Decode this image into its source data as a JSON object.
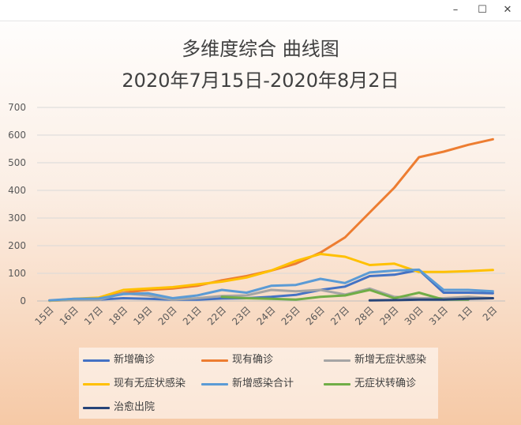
{
  "window": {
    "minimize": "–",
    "maximize": "☐",
    "close": "✕"
  },
  "chart_data": {
    "type": "line",
    "title": "多维度综合 曲线图",
    "subtitle": "2020年7月15日-2020年8月2日",
    "xlabel": "",
    "ylabel": "",
    "ylim": [
      0,
      700
    ],
    "yticks": [
      "0",
      "100",
      "200",
      "300",
      "400",
      "500",
      "600",
      "700"
    ],
    "grid": true,
    "legend_position": "bottom",
    "categories": [
      "15日",
      "16日",
      "17日",
      "18日",
      "19日",
      "20日",
      "21日",
      "22日",
      "23日",
      "24日",
      "25日",
      "26日",
      "27日",
      "28日",
      "29日",
      "30日",
      "31日",
      "1日",
      "2日"
    ],
    "series": [
      {
        "name": "新增确诊",
        "color": "#4472c4",
        "values": [
          1,
          5,
          5,
          10,
          8,
          5,
          5,
          9,
          10,
          15,
          22,
          40,
          52,
          90,
          95,
          112,
          30,
          30,
          28
        ]
      },
      {
        "name": "现有确诊",
        "color": "#ed7d31",
        "values": [
          1,
          5,
          8,
          30,
          40,
          45,
          55,
          75,
          90,
          110,
          135,
          175,
          230,
          320,
          410,
          520,
          540,
          565,
          585
        ]
      },
      {
        "name": "新增无症状感染",
        "color": "#a5a5a5",
        "values": [
          1,
          3,
          4,
          28,
          20,
          5,
          10,
          18,
          20,
          40,
          35,
          40,
          23,
          45,
          15,
          10,
          10,
          15,
          10
        ]
      },
      {
        "name": "现有无症状感染",
        "color": "#ffc000",
        "values": [
          1,
          8,
          12,
          40,
          45,
          50,
          60,
          70,
          85,
          110,
          145,
          170,
          160,
          130,
          135,
          105,
          105,
          108,
          112
        ]
      },
      {
        "name": "新增感染合计",
        "color": "#5b9bd5",
        "values": [
          2,
          8,
          9,
          25,
          28,
          10,
          20,
          40,
          30,
          55,
          58,
          80,
          65,
          103,
          110,
          113,
          40,
          40,
          35
        ]
      },
      {
        "name": "无症状转确诊",
        "color": "#70ad47",
        "values": [
          null,
          null,
          null,
          null,
          null,
          null,
          null,
          15,
          10,
          8,
          5,
          15,
          20,
          40,
          10,
          30,
          5,
          5,
          null
        ]
      },
      {
        "name": "治愈出院",
        "color": "#264478",
        "values": [
          null,
          null,
          null,
          null,
          null,
          null,
          null,
          null,
          null,
          null,
          null,
          null,
          null,
          2,
          3,
          5,
          5,
          8,
          10
        ]
      }
    ]
  }
}
